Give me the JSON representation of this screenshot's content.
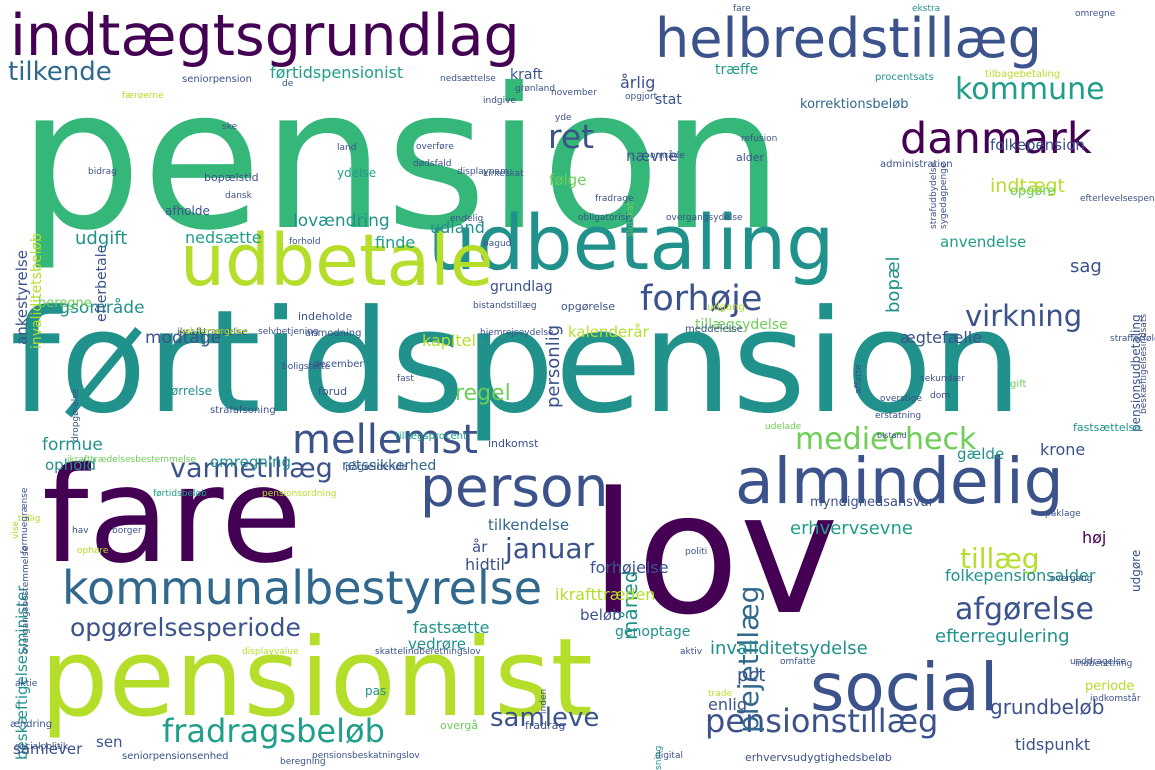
{
  "palette": {
    "purple": "#440154",
    "indigo": "#3b528b",
    "blue": "#31688e",
    "teal": "#21918c",
    "sea": "#1f9e89",
    "green": "#35b779",
    "mint": "#6ece58",
    "lime": "#b5de2b",
    "yellow": "#fde725"
  },
  "words": [
    "pension",
    "førtidspension",
    "fare",
    "lov",
    "pensionist",
    "udbetaling",
    "udbetale",
    "indtægtsgrundlag",
    "helbredstillæg",
    "almindelig",
    "social",
    "person",
    "mellemst",
    "kommunalbestyrelse",
    "danmark",
    "forhøje",
    "pensionstillæg",
    "fradragsbeløb",
    "opgørelsesperiode",
    "varmetillæg",
    "mediecheck",
    "afgørelse",
    "kommune",
    "virkning",
    "tillæg",
    "januar",
    "måned",
    "plejetillæg",
    "ret",
    "samleve",
    "tilkende",
    "erhvervsevne",
    "invaliditetsydelse",
    "efterregulering",
    "folkepensionsalder",
    "ikrafttræden",
    "forhøjelse",
    "grundbeløb",
    "tidspunkt",
    "indtægt",
    "bopæl",
    "personlig",
    "ankestyrelse",
    "beskæftigelsesminister",
    "folkepension",
    "førtidspensionist",
    "korrektionsbeløb",
    "træffe",
    "årlig",
    "kraft",
    "regel",
    "sag",
    "ægtefælle",
    "kapitel",
    "modtage",
    "sagsområde",
    "udgift",
    "nedsætte",
    "lovændring",
    "finde",
    "udland",
    "formue",
    "omregning",
    "ophold",
    "retssikkerhed",
    "tilkendelse",
    "hidtil",
    "fastsætte",
    "vedrøre",
    "beløb",
    "genoptage",
    "pct",
    "enlig",
    "krone",
    "høj",
    "gælde",
    "år",
    "sen",
    "samlever",
    "kalenderår",
    "tillægsydelse",
    "anvendelse",
    "følge",
    "nævne",
    "stat",
    "opgøre",
    "efterbetale",
    "afholde",
    "invaliditetsbeløb",
    "grundlag",
    "beregne",
    "pensionsudbetaling",
    "størrelse",
    "december",
    "forud",
    "administration",
    "alder",
    "ydelse",
    "bopælstid",
    "procentsats",
    "tilbagebetaling",
    "seniorpension",
    "nedsættelse",
    "opgjort",
    "indgive",
    "myndighedsansvar",
    "periode",
    "udgøre",
    "indkomst",
    "pågældende",
    "erhvervsudygtighedsbeløb",
    "seniorpensionsenhed",
    "pensionsbeskatningslov",
    "digital",
    "socialpolitik",
    "ændring",
    "aktie",
    "pas",
    "overgå",
    "fradrag",
    "oplysning",
    "indberetning",
    "indkomstår",
    "overgang",
    "bistand",
    "erstatning",
    "tillægsprocent",
    "udelade",
    "fastsættelse",
    "ikrafttrædelse",
    "ikrafttrædelsesbestemmelse",
    "førtidsbeløb",
    "pensionsordning",
    "anmodning",
    "hjemrejseydelse",
    "selvforsørgelse",
    "selvbetjening",
    "boligstøtte",
    "strafafsoning",
    "indeholde",
    "meddelelse",
    "opgørelse",
    "bistandstillæg",
    "udgang",
    "overstige",
    "dom",
    "fast",
    "gift",
    "affatte",
    "strafforfølgning",
    "beskæftigelsesindsats",
    "obligatorisk",
    "overgangsydelse",
    "strafudbydelse",
    "sygedagpenge",
    "efterlevelsespension",
    "refusion",
    "slutskat",
    "kirkeskat",
    "land",
    "dødsfald",
    "overføre",
    "displaynam",
    "dansk",
    "fradrage",
    "område",
    "bagud",
    "endelig",
    "forhold",
    "sekundær",
    "bidrag",
    "ske",
    "færøerne",
    "grønland",
    "november",
    "ekstra",
    "omregne",
    "fare",
    "de",
    "tidlig",
    "hav",
    "borger",
    "vise",
    "ophøre",
    "politi",
    "påklage",
    "formuegrænse",
    "overgangsbestemmelse",
    "inden",
    "displayvalue",
    "skattelindberetningslov",
    "aktiv",
    "unddragelse",
    "omfatte",
    "trade",
    "dropgørelse",
    "yde",
    "beregning"
  ]
}
